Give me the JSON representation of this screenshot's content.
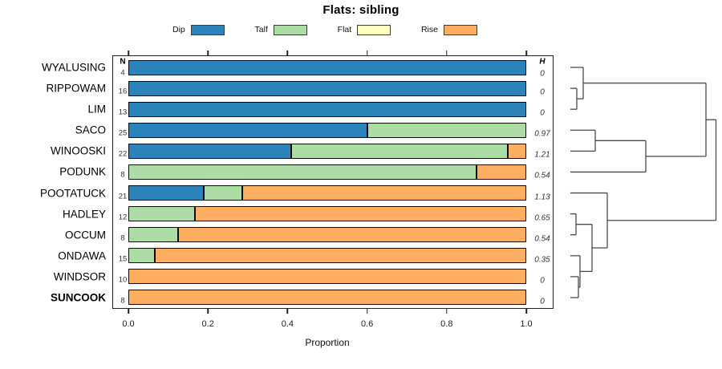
{
  "title": "Flats: sibling",
  "columns": {
    "n_header": "N",
    "h_header": "H"
  },
  "x_axis": {
    "label": "Proportion",
    "ticks": [
      0.0,
      0.2,
      0.4,
      0.6,
      0.8,
      1.0
    ],
    "tick_labels": [
      "0.0",
      "0.2",
      "0.4",
      "0.6",
      "0.8",
      "1.0"
    ],
    "min": 0,
    "max": 1
  },
  "legend": {
    "items": [
      {
        "label": "Dip",
        "color": "#2b83ba"
      },
      {
        "label": "Talf",
        "color": "#abdda4"
      },
      {
        "label": "Flat",
        "color": "#ffffbf"
      },
      {
        "label": "Rise",
        "color": "#fdae61"
      }
    ]
  },
  "chart_data": {
    "type": "bar",
    "orientation": "horizontal",
    "stacked": true,
    "title": "Flats: sibling",
    "xlabel": "Proportion",
    "xlim": [
      0,
      1
    ],
    "grid": false,
    "categories": [
      "Dip",
      "Talf",
      "Flat",
      "Rise"
    ],
    "colors": {
      "Dip": "#2b83ba",
      "Talf": "#abdda4",
      "Flat": "#ffffbf",
      "Rise": "#fdae61"
    },
    "rows": [
      {
        "name": "WYALUSING",
        "n": 4,
        "entropy": "0",
        "bold": false,
        "segments": [
          {
            "category": "Dip",
            "proportion": 1.0
          }
        ]
      },
      {
        "name": "RIPPOWAM",
        "n": 16,
        "entropy": "0",
        "bold": false,
        "segments": [
          {
            "category": "Dip",
            "proportion": 1.0
          }
        ]
      },
      {
        "name": "LIM",
        "n": 13,
        "entropy": "0",
        "bold": false,
        "segments": [
          {
            "category": "Dip",
            "proportion": 1.0
          }
        ]
      },
      {
        "name": "SACO",
        "n": 25,
        "entropy": "0.97",
        "bold": false,
        "segments": [
          {
            "category": "Dip",
            "proportion": 0.6
          },
          {
            "category": "Talf",
            "proportion": 0.4
          }
        ]
      },
      {
        "name": "WINOOSKI",
        "n": 22,
        "entropy": "1.21",
        "bold": false,
        "segments": [
          {
            "category": "Dip",
            "proportion": 0.409
          },
          {
            "category": "Talf",
            "proportion": 0.545
          },
          {
            "category": "Rise",
            "proportion": 0.046
          }
        ]
      },
      {
        "name": "PODUNK",
        "n": 8,
        "entropy": "0.54",
        "bold": false,
        "segments": [
          {
            "category": "Talf",
            "proportion": 0.875
          },
          {
            "category": "Rise",
            "proportion": 0.125
          }
        ]
      },
      {
        "name": "POOTATUCK",
        "n": 21,
        "entropy": "1.13",
        "bold": false,
        "segments": [
          {
            "category": "Dip",
            "proportion": 0.19
          },
          {
            "category": "Talf",
            "proportion": 0.096
          },
          {
            "category": "Rise",
            "proportion": 0.714
          }
        ]
      },
      {
        "name": "HADLEY",
        "n": 12,
        "entropy": "0.65",
        "bold": false,
        "segments": [
          {
            "category": "Talf",
            "proportion": 0.167
          },
          {
            "category": "Rise",
            "proportion": 0.833
          }
        ]
      },
      {
        "name": "OCCUM",
        "n": 8,
        "entropy": "0.54",
        "bold": false,
        "segments": [
          {
            "category": "Talf",
            "proportion": 0.125
          },
          {
            "category": "Rise",
            "proportion": 0.875
          }
        ]
      },
      {
        "name": "ONDAWA",
        "n": 15,
        "entropy": "0.35",
        "bold": false,
        "segments": [
          {
            "category": "Talf",
            "proportion": 0.067
          },
          {
            "category": "Rise",
            "proportion": 0.933
          }
        ]
      },
      {
        "name": "WINDSOR",
        "n": 10,
        "entropy": "0",
        "bold": false,
        "segments": [
          {
            "category": "Rise",
            "proportion": 1.0
          }
        ]
      },
      {
        "name": "SUNCOOK",
        "n": 8,
        "entropy": "0",
        "bold": true,
        "segments": [
          {
            "category": "Rise",
            "proportion": 1.0
          }
        ]
      }
    ],
    "dendrogram": {
      "leaf_order": [
        "WYALUSING",
        "RIPPOWAM",
        "LIM",
        "SACO",
        "WINOOSKI",
        "PODUNK",
        "POOTATUCK",
        "HADLEY",
        "OCCUM",
        "ONDAWA",
        "WINDSOR",
        "SUNCOOK"
      ],
      "merges": [
        {
          "id": "M1",
          "a": "RIPPOWAM",
          "b": "LIM",
          "height": 8
        },
        {
          "id": "M2",
          "a": "WYALUSING",
          "b": "M1",
          "height": 16
        },
        {
          "id": "M3",
          "a": "SACO",
          "b": "WINOOSKI",
          "height": 31
        },
        {
          "id": "M4",
          "a": "M3",
          "b": "PODUNK",
          "height": 94
        },
        {
          "id": "M5",
          "a": "M2",
          "b": "M4",
          "height": 169
        },
        {
          "id": "M6",
          "a": "HADLEY",
          "b": "OCCUM",
          "height": 7
        },
        {
          "id": "M7",
          "a": "WINDSOR",
          "b": "SUNCOOK",
          "height": 10
        },
        {
          "id": "M8",
          "a": "ONDAWA",
          "b": "M7",
          "height": 12
        },
        {
          "id": "M9",
          "a": "M6",
          "b": "M8",
          "height": 27
        },
        {
          "id": "M10",
          "a": "POOTATUCK",
          "b": "M9",
          "height": 46
        },
        {
          "id": "M11",
          "a": "M5",
          "b": "M10",
          "height": 181.5
        }
      ]
    }
  }
}
